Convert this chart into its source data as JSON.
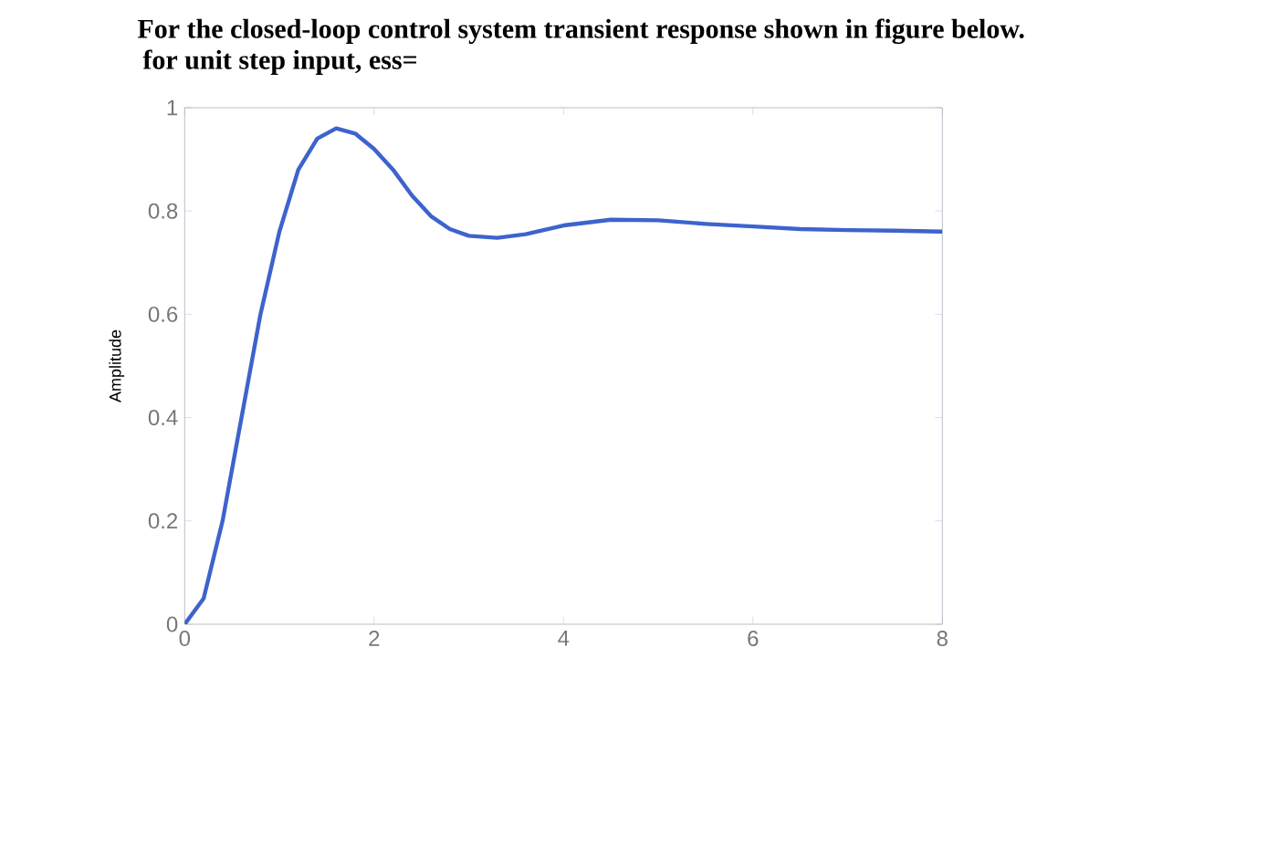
{
  "chart_data": {
    "type": "line",
    "title": "For the closed-loop control system transient response shown in figure below.",
    "subtitle": "for unit step input, ess=",
    "ylabel": "Amplitude",
    "xlim": [
      0,
      8
    ],
    "ylim": [
      0,
      1
    ],
    "xticks": [
      0,
      2,
      4,
      6,
      8
    ],
    "yticks": [
      0,
      0.2,
      0.4,
      0.6,
      0.8,
      1
    ],
    "grid": false,
    "series": [
      {
        "color": "#3d63cc",
        "x": [
          0,
          0.2,
          0.4,
          0.6,
          0.8,
          1.0,
          1.2,
          1.4,
          1.6,
          1.8,
          2.0,
          2.2,
          2.4,
          2.6,
          2.8,
          3.0,
          3.3,
          3.6,
          4.0,
          4.5,
          5.0,
          5.5,
          6.0,
          6.5,
          7.0,
          7.5,
          8.0
        ],
        "values": [
          0,
          0.05,
          0.2,
          0.4,
          0.6,
          0.76,
          0.88,
          0.94,
          0.96,
          0.95,
          0.92,
          0.88,
          0.83,
          0.79,
          0.765,
          0.752,
          0.748,
          0.755,
          0.772,
          0.783,
          0.782,
          0.775,
          0.77,
          0.765,
          0.763,
          0.762,
          0.76
        ]
      }
    ]
  }
}
